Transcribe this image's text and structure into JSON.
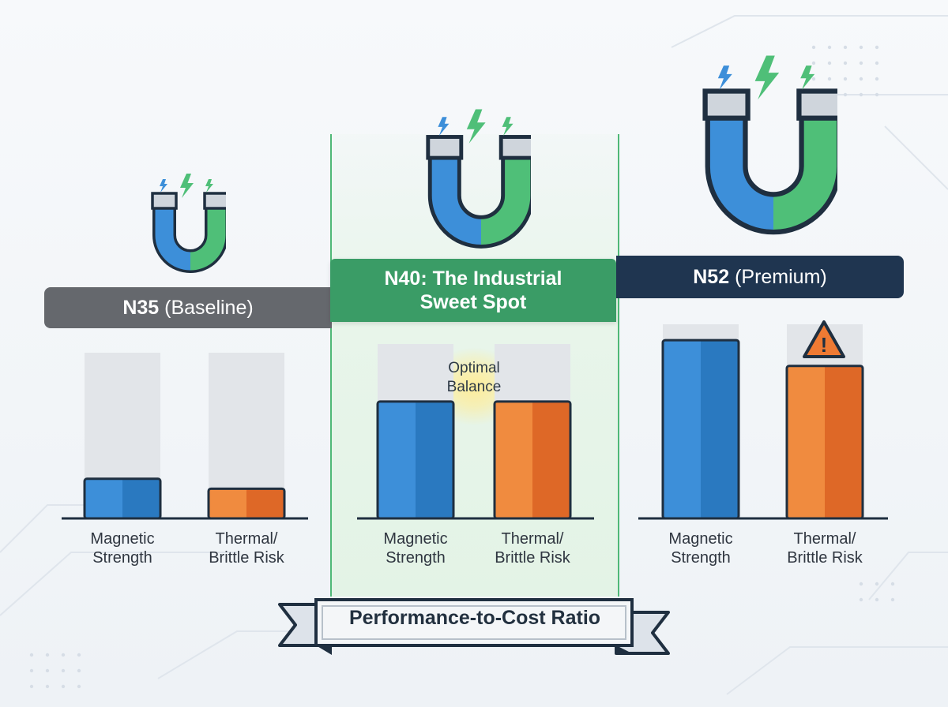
{
  "chart_data": {
    "type": "bar",
    "ylim": [
      0,
      100
    ],
    "categories": [
      "Magnetic\nStrength",
      "Thermal/\nBrittle Risk"
    ],
    "groups": [
      {
        "id": "n35",
        "title_bold": "N35",
        "title_rest": " (Baseline)",
        "values": [
          20,
          15
        ],
        "labels": [
          "Magnetic\nStrength",
          "Thermal/\nBrittle Risk"
        ]
      },
      {
        "id": "n40",
        "title_bold": "N40: The Industrial Sweet Spot",
        "title_rest": "",
        "values": [
          59,
          59
        ],
        "labels": [
          "Magnetic\nStrength",
          "Thermal/\nBrittle Risk"
        ],
        "annotation": "Optimal Balance"
      },
      {
        "id": "n52",
        "title_bold": "N52",
        "title_rest": " (Premium)",
        "values": [
          90,
          77
        ],
        "labels": [
          "Magnetic\nStrength",
          "Thermal/\nBrittle Risk"
        ],
        "warning": "!"
      }
    ],
    "series_colors": {
      "magnetic": [
        "#3d8fd9",
        "#2a79c0"
      ],
      "thermal": [
        "#f08b3f",
        "#de6827"
      ]
    },
    "track_color": "#e2e5e9",
    "ribbon_label": "Performance-to-Cost Ratio"
  }
}
